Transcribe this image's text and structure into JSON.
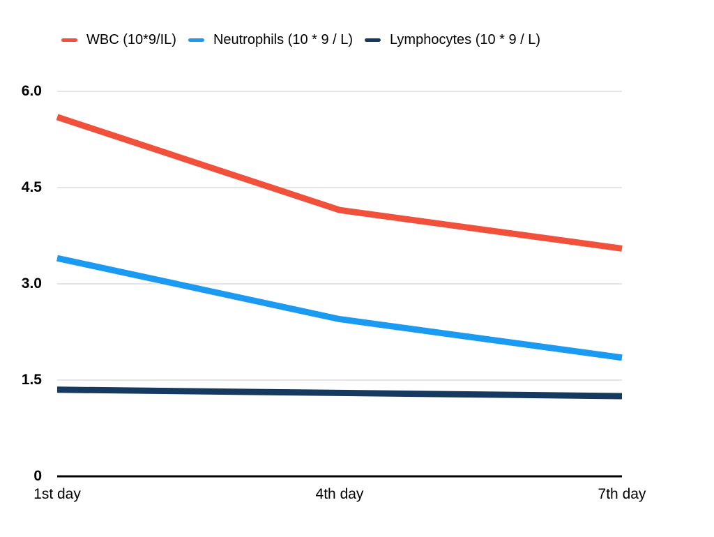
{
  "chart_data": {
    "type": "line",
    "title": "",
    "xlabel": "",
    "ylabel": "",
    "categories": [
      "1st day",
      "4th day",
      "7th day"
    ],
    "series": [
      {
        "name": "WBC (10*9/IL)",
        "color": "#F1503B",
        "values": [
          5.6,
          4.15,
          3.55
        ]
      },
      {
        "name": "Neutrophils (10 * 9 / L)",
        "color": "#1B9AF2",
        "values": [
          3.4,
          2.45,
          1.85
        ]
      },
      {
        "name": "Lymphocytes (10 * 9 / L)",
        "color": "#16395F",
        "values": [
          1.35,
          1.3,
          1.25
        ]
      }
    ],
    "yticks": [
      {
        "value": 0,
        "label": "0"
      },
      {
        "value": 1.5,
        "label": "1.5"
      },
      {
        "value": 3,
        "label": "3.0"
      },
      {
        "value": 4.5,
        "label": "4.5"
      },
      {
        "value": 6,
        "label": "6.0"
      }
    ],
    "ylim": [
      0,
      6
    ],
    "grid": true,
    "legend_position": "top"
  },
  "colors": {
    "background": "#FFFFFF",
    "gridline": "#DCDCDC",
    "axis": "#000000",
    "text": "#000000"
  }
}
